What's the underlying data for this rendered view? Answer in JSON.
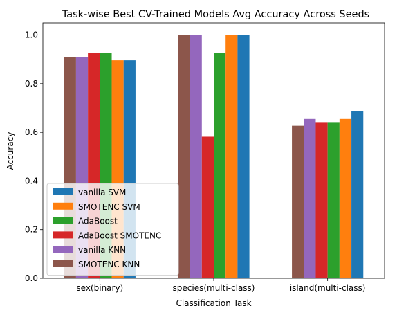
{
  "chart_data": {
    "type": "bar",
    "title": "Task-wise Best CV-Trained Models Avg Accuracy Across Seeds",
    "xlabel": "Classification Task",
    "ylabel": "Accuracy",
    "ylim": [
      0,
      1.05
    ],
    "yticks": [
      0.0,
      0.2,
      0.4,
      0.6,
      0.8,
      1.0
    ],
    "ytick_labels": [
      "0.0",
      "0.2",
      "0.4",
      "0.6",
      "0.8",
      "1.0"
    ],
    "categories": [
      "sex(binary)",
      "species(multi-class)",
      "island(multi-class)"
    ],
    "grid": false,
    "legend_position": "lower-left",
    "legend_order": [
      "vanilla SVM",
      "SMOTENC SVM",
      "AdaBoost",
      "AdaBoost SMOTENC",
      "vanilla KNN",
      "SMOTENC KNN"
    ],
    "series": [
      {
        "name": "SMOTENC KNN",
        "color": "#8c564b",
        "values": [
          0.91,
          1.0,
          0.627
        ]
      },
      {
        "name": "vanilla KNN",
        "color": "#9467bd",
        "values": [
          0.91,
          1.0,
          0.655
        ]
      },
      {
        "name": "AdaBoost SMOTENC",
        "color": "#d62728",
        "values": [
          0.925,
          0.582,
          0.642
        ]
      },
      {
        "name": "AdaBoost",
        "color": "#2ca02c",
        "values": [
          0.925,
          0.925,
          0.642
        ]
      },
      {
        "name": "SMOTENC SVM",
        "color": "#ff7f0e",
        "values": [
          0.896,
          1.0,
          0.655
        ]
      },
      {
        "name": "vanilla SVM",
        "color": "#1f77b4",
        "values": [
          0.896,
          1.0,
          0.687
        ]
      }
    ]
  }
}
